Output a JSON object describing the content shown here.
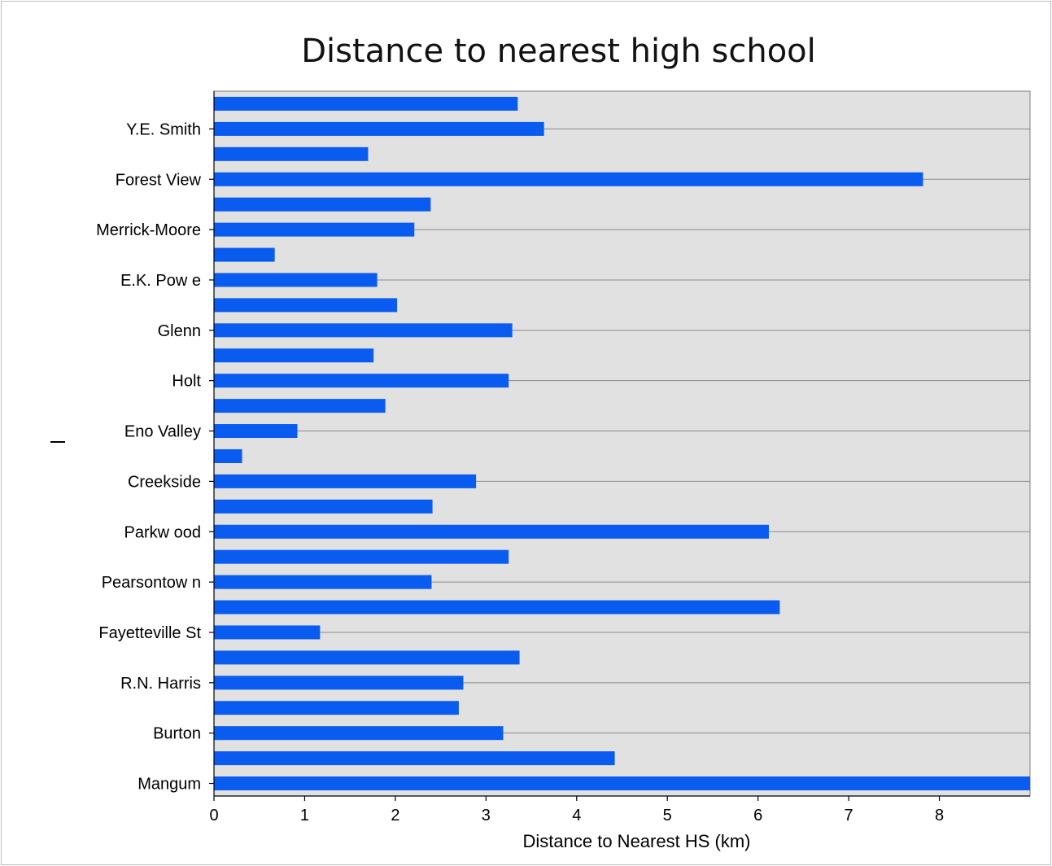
{
  "chart_data": {
    "type": "bar",
    "orientation": "horizontal",
    "title": "Distance to nearest high school",
    "xlabel": "Distance to Nearest HS (km)",
    "ylabel": "",
    "xlim": [
      0,
      9
    ],
    "x_ticks": [
      "0",
      "1",
      "2",
      "3",
      "4",
      "5",
      "6",
      "7",
      "8"
    ],
    "grid": "horizontal",
    "bar_color": "#0a5cf0",
    "plot_background": "#e1e1e1",
    "bars": [
      {
        "label": "",
        "value": 3.35
      },
      {
        "label": "Y.E. Smith",
        "value": 3.64
      },
      {
        "label": "",
        "value": 1.7
      },
      {
        "label": "Forest View",
        "value": 7.82
      },
      {
        "label": "",
        "value": 2.39
      },
      {
        "label": "Merrick-Moore",
        "value": 2.21
      },
      {
        "label": "",
        "value": 0.67
      },
      {
        "label": "E.K. Pow e",
        "value": 1.8
      },
      {
        "label": "",
        "value": 2.02
      },
      {
        "label": "Glenn",
        "value": 3.29
      },
      {
        "label": "",
        "value": 1.76
      },
      {
        "label": "Holt",
        "value": 3.25
      },
      {
        "label": "",
        "value": 1.89
      },
      {
        "label": "Eno Valley",
        "value": 0.92
      },
      {
        "label": "",
        "value": 0.31
      },
      {
        "label": "Creekside",
        "value": 2.89
      },
      {
        "label": "",
        "value": 2.41
      },
      {
        "label": "Parkw ood",
        "value": 6.12
      },
      {
        "label": "",
        "value": 3.25
      },
      {
        "label": "Pearsontow n",
        "value": 2.4
      },
      {
        "label": "",
        "value": 6.24
      },
      {
        "label": "Fayetteville St",
        "value": 1.17
      },
      {
        "label": "",
        "value": 3.37
      },
      {
        "label": "R.N. Harris",
        "value": 2.75
      },
      {
        "label": "",
        "value": 2.7
      },
      {
        "label": "Burton",
        "value": 3.19
      },
      {
        "label": "",
        "value": 4.42
      },
      {
        "label": "Mangum",
        "value": 9.0
      }
    ]
  }
}
